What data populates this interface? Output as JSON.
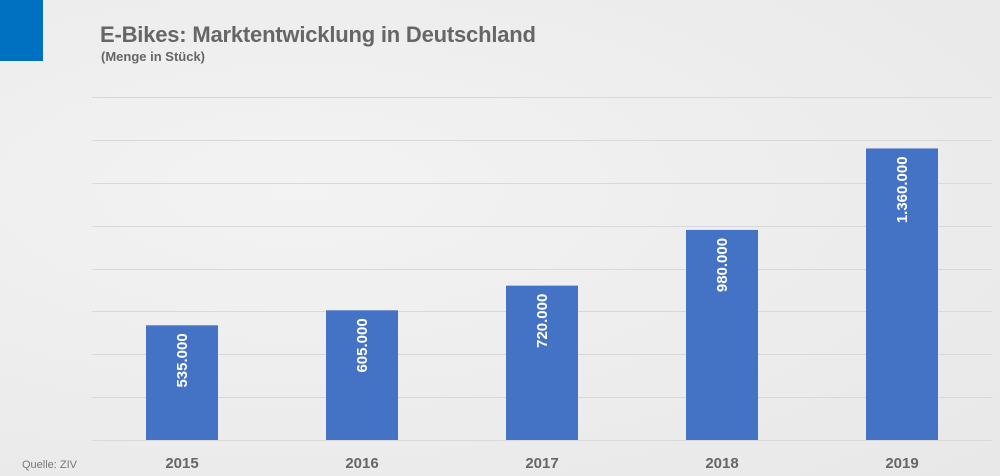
{
  "chart_data": {
    "type": "bar",
    "title": "E-Bikes: Marktentwicklung in Deutschland",
    "subtitle": "(Menge in Stück)",
    "categories": [
      "2015",
      "2016",
      "2017",
      "2018",
      "2019"
    ],
    "values": [
      535000,
      605000,
      720000,
      980000,
      1360000
    ],
    "data_labels": [
      "535.000",
      "605.000",
      "720.000",
      "980.000",
      "1.360.000"
    ],
    "xlabel": "",
    "ylabel": "",
    "ylim": [
      0,
      1600000
    ],
    "gridline_step": 200000,
    "grid": true,
    "y_tick_labels_shown": false,
    "legend": "none",
    "bar_color": "#4472c4",
    "source": "Quelle: ZIV"
  },
  "accent_color": "#0070c0"
}
